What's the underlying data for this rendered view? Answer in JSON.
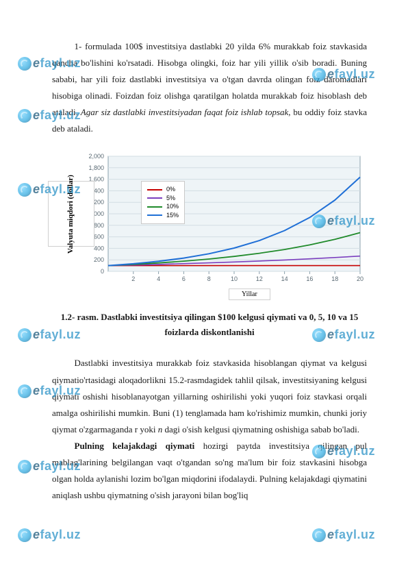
{
  "paragraph1": {
    "t1": "1- formulada 100$ investitsiya dastlabki 20 yilda 6% murakkab foiz stavkasida qancha bo'lishini ko'rsatadi. Hisobga olingki, foiz har yili yillik o'sib boradi. Buning sababi, har yili foiz dastlabki investitsiya va o'tgan davrda olingan foiz daromadlari hisobiga olinadi. Foizdan foiz olishga qaratilgan holatda murakkab foiz hisoblash deb ataladi. ",
    "italic1": "Agar siz dastlabki investitsiyadan faqat foiz ishlab topsak",
    "t2": ", bu oddiy foiz stavka deb ataladi."
  },
  "chart": {
    "ylabel": "Valyuta miqdori (dollar)",
    "xlabel": "Yillar",
    "ylim": [
      0,
      2000
    ],
    "yticks": [
      0,
      200,
      400,
      600,
      800,
      1000,
      1200,
      1400,
      1600,
      1800,
      2000
    ],
    "xlim": [
      0,
      20
    ],
    "xticks": [
      2,
      4,
      6,
      8,
      10,
      12,
      14,
      16,
      18,
      20
    ],
    "bg": "#eef4f7",
    "grid": "#d2dde3",
    "axis": "#8aa0ac",
    "tick_font": 9,
    "legend": [
      {
        "label": "0%",
        "color": "#c60000"
      },
      {
        "label": "5%",
        "color": "#7b3fbf"
      },
      {
        "label": "10%",
        "color": "#1f8a2a"
      },
      {
        "label": "15%",
        "color": "#1f6fd6"
      }
    ],
    "series": [
      {
        "color": "#c60000",
        "width": 1.6,
        "points": [
          [
            0,
            100
          ],
          [
            2,
            100
          ],
          [
            4,
            100
          ],
          [
            6,
            100
          ],
          [
            8,
            100
          ],
          [
            10,
            100
          ],
          [
            12,
            100
          ],
          [
            14,
            100
          ],
          [
            16,
            100
          ],
          [
            18,
            100
          ],
          [
            20,
            100
          ]
        ]
      },
      {
        "color": "#7b3fbf",
        "width": 1.6,
        "points": [
          [
            0,
            100
          ],
          [
            2,
            110
          ],
          [
            4,
            122
          ],
          [
            6,
            134
          ],
          [
            8,
            148
          ],
          [
            10,
            163
          ],
          [
            12,
            180
          ],
          [
            14,
            198
          ],
          [
            16,
            218
          ],
          [
            18,
            241
          ],
          [
            20,
            265
          ]
        ]
      },
      {
        "color": "#1f8a2a",
        "width": 1.8,
        "points": [
          [
            0,
            100
          ],
          [
            2,
            121
          ],
          [
            4,
            146
          ],
          [
            6,
            177
          ],
          [
            8,
            214
          ],
          [
            10,
            259
          ],
          [
            12,
            314
          ],
          [
            14,
            380
          ],
          [
            16,
            459
          ],
          [
            18,
            556
          ],
          [
            20,
            673
          ]
        ]
      },
      {
        "color": "#1f6fd6",
        "width": 2.0,
        "points": [
          [
            0,
            100
          ],
          [
            2,
            132
          ],
          [
            4,
            175
          ],
          [
            6,
            231
          ],
          [
            8,
            306
          ],
          [
            10,
            405
          ],
          [
            12,
            535
          ],
          [
            14,
            708
          ],
          [
            16,
            936
          ],
          [
            18,
            1238
          ],
          [
            20,
            1637
          ]
        ]
      }
    ]
  },
  "caption": {
    "line1": "1.2- rasm.  Dastlabki investitsiya qilingan $100 kelgusi qiymati va 0, 5, 10 va 15 foizlarda diskontlanishi"
  },
  "paragraph2": {
    "t1": "Dastlabki investitsiya murakkab foiz stavkasida hisoblangan qiymat va kelgusi qiymatio'rtasidagi aloqadorlikni 15.2-rasmdagidek tahlil qilsak, investitsiyaning kelgusi qiymati oshishi hisoblanayotgan yillarning oshirilishi yoki yuqori foiz stavkasi orqali amalga oshirilishi mumkin. Buni (1) tenglamada ham ko'rishimiz mumkin, chunki joriy qiymat o'zgarmaganda r yoki ",
    "italic_n": "n",
    "t2": " dagi o'sish kelgusi qiymatning oshishiga sabab bo'ladi."
  },
  "paragraph3": {
    "bold": "Pulning kelajakdagi qiymati",
    "t1": " hozirgi paytda investitsiya qilingan pul mablag'larining belgilangan vaqt o'tgandan so'ng ma'lum bir foiz stavkasini hisobga olgan holda aylanishi lozim bo'lgan miqdorini ifodalaydi. Pulning kelajakdagi qiymatini aniqlash ushbu qiymatning o'sish jarayoni bilan bog'liq"
  },
  "watermark": {
    "text": "fayl.uz",
    "e": "e"
  }
}
